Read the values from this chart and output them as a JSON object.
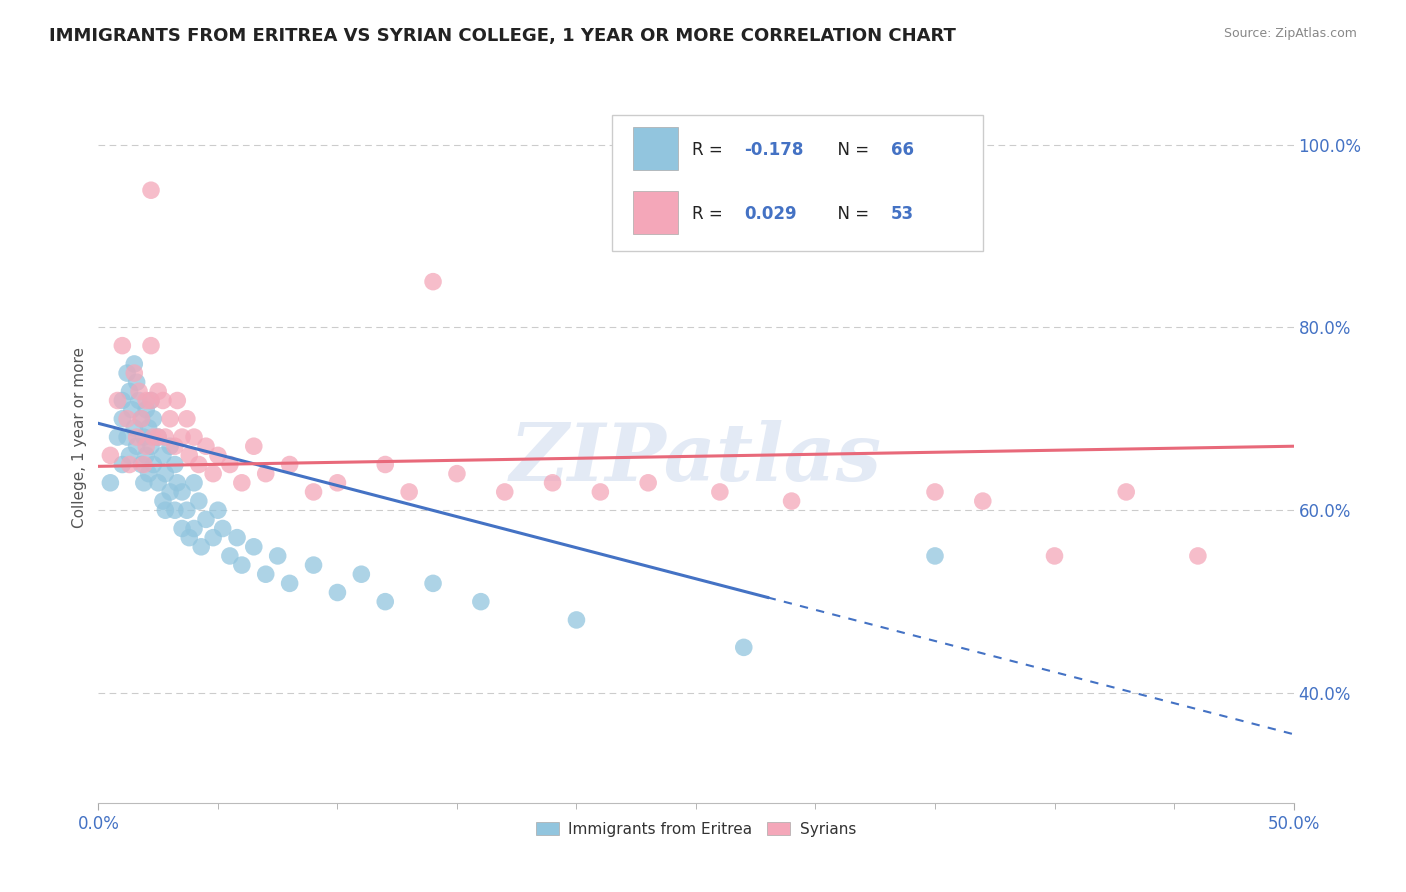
{
  "title": "IMMIGRANTS FROM ERITREA VS SYRIAN COLLEGE, 1 YEAR OR MORE CORRELATION CHART",
  "source": "Source: ZipAtlas.com",
  "ylabel": "College, 1 year or more",
  "legend_label1": "Immigrants from Eritrea",
  "legend_label2": "Syrians",
  "r1": -0.178,
  "n1": 66,
  "r2": 0.029,
  "n2": 53,
  "color1": "#92c5de",
  "color2": "#f4a7b9",
  "line1_color": "#4472c4",
  "line2_color": "#e8697a",
  "xlim": [
    0.0,
    0.5
  ],
  "ylim": [
    0.28,
    1.08
  ],
  "watermark": "ZIPatlas",
  "ytick_vals": [
    0.4,
    0.6,
    0.8,
    1.0
  ],
  "ytick_labels": [
    "40.0%",
    "60.0%",
    "80.0%",
    "100.0%"
  ],
  "eritrea_x": [
    0.005,
    0.008,
    0.01,
    0.01,
    0.01,
    0.012,
    0.012,
    0.013,
    0.013,
    0.014,
    0.015,
    0.015,
    0.016,
    0.016,
    0.017,
    0.018,
    0.018,
    0.019,
    0.019,
    0.02,
    0.02,
    0.021,
    0.021,
    0.022,
    0.022,
    0.023,
    0.023,
    0.025,
    0.025,
    0.027,
    0.027,
    0.028,
    0.028,
    0.03,
    0.03,
    0.032,
    0.032,
    0.033,
    0.035,
    0.035,
    0.037,
    0.038,
    0.04,
    0.04,
    0.042,
    0.043,
    0.045,
    0.048,
    0.05,
    0.052,
    0.055,
    0.058,
    0.06,
    0.065,
    0.07,
    0.075,
    0.08,
    0.09,
    0.1,
    0.11,
    0.12,
    0.14,
    0.16,
    0.2,
    0.27,
    0.35
  ],
  "eritrea_y": [
    0.63,
    0.68,
    0.72,
    0.7,
    0.65,
    0.75,
    0.68,
    0.73,
    0.66,
    0.71,
    0.76,
    0.69,
    0.74,
    0.67,
    0.72,
    0.7,
    0.65,
    0.68,
    0.63,
    0.71,
    0.66,
    0.69,
    0.64,
    0.72,
    0.67,
    0.7,
    0.65,
    0.68,
    0.63,
    0.66,
    0.61,
    0.64,
    0.6,
    0.67,
    0.62,
    0.65,
    0.6,
    0.63,
    0.58,
    0.62,
    0.6,
    0.57,
    0.63,
    0.58,
    0.61,
    0.56,
    0.59,
    0.57,
    0.6,
    0.58,
    0.55,
    0.57,
    0.54,
    0.56,
    0.53,
    0.55,
    0.52,
    0.54,
    0.51,
    0.53,
    0.5,
    0.52,
    0.5,
    0.48,
    0.45,
    0.55
  ],
  "syrian_x": [
    0.005,
    0.008,
    0.01,
    0.012,
    0.013,
    0.015,
    0.016,
    0.017,
    0.018,
    0.019,
    0.02,
    0.02,
    0.022,
    0.022,
    0.023,
    0.025,
    0.025,
    0.027,
    0.028,
    0.03,
    0.032,
    0.033,
    0.035,
    0.037,
    0.038,
    0.04,
    0.042,
    0.045,
    0.048,
    0.05,
    0.055,
    0.06,
    0.065,
    0.07,
    0.08,
    0.09,
    0.1,
    0.12,
    0.13,
    0.15,
    0.17,
    0.19,
    0.21,
    0.23,
    0.26,
    0.29,
    0.35,
    0.37,
    0.4,
    0.43,
    0.022,
    0.14,
    0.46
  ],
  "syrian_y": [
    0.66,
    0.72,
    0.78,
    0.7,
    0.65,
    0.75,
    0.68,
    0.73,
    0.7,
    0.65,
    0.72,
    0.67,
    0.78,
    0.72,
    0.68,
    0.73,
    0.68,
    0.72,
    0.68,
    0.7,
    0.67,
    0.72,
    0.68,
    0.7,
    0.66,
    0.68,
    0.65,
    0.67,
    0.64,
    0.66,
    0.65,
    0.63,
    0.67,
    0.64,
    0.65,
    0.62,
    0.63,
    0.65,
    0.62,
    0.64,
    0.62,
    0.63,
    0.62,
    0.63,
    0.62,
    0.61,
    0.62,
    0.61,
    0.55,
    0.62,
    0.95,
    0.85,
    0.55
  ],
  "line1_x0": 0.0,
  "line1_y0": 0.695,
  "line1_x1": 0.5,
  "line1_y1": 0.355,
  "line1_solid_end": 0.28,
  "line2_x0": 0.0,
  "line2_y0": 0.648,
  "line2_x1": 0.5,
  "line2_y1": 0.67
}
